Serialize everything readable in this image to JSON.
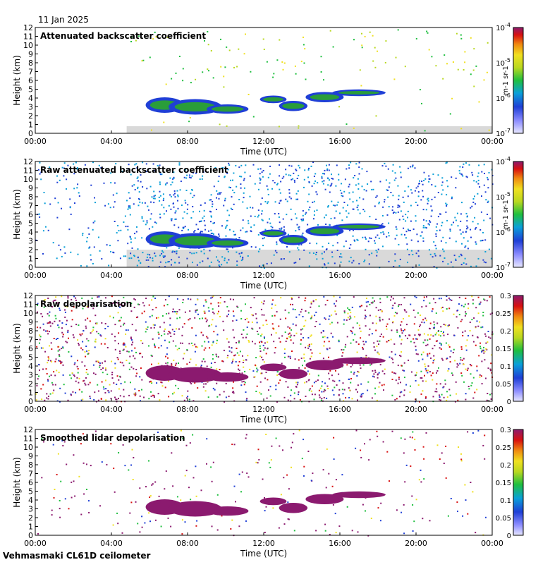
{
  "date": "11 Jan 2025",
  "footer": "Vehmasmaki CL61D ceilometer",
  "colors": {
    "background_fill": "#d9d9d9",
    "cloud_core": "#2a9d3a",
    "cloud_edge": "#1f3fd6",
    "depol_high": "#8b1a6f"
  },
  "chart_data": [
    {
      "type": "heatmap",
      "title": "Attenuated backscatter coefficient",
      "xlabel": "Time (UTC)",
      "ylabel": "Height (km)",
      "xticks": [
        "00:00",
        "04:00",
        "08:00",
        "12:00",
        "16:00",
        "20:00",
        "00:00"
      ],
      "xlim": [
        0,
        24
      ],
      "ylim": [
        0,
        12
      ],
      "yticks": [
        "0",
        "1",
        "2",
        "3",
        "4",
        "5",
        "6",
        "7",
        "8",
        "9",
        "10",
        "11",
        "12"
      ],
      "colorbar": {
        "scale": "log",
        "ticks": [
          "10^-4",
          "10^-5",
          "10^-6",
          "10^-7"
        ],
        "label": "m^-1 sr^-1"
      }
    },
    {
      "type": "heatmap",
      "title": "Raw attenuated backscatter coefficient",
      "xlabel": "Time (UTC)",
      "ylabel": "Height (km)",
      "xticks": [
        "00:00",
        "04:00",
        "08:00",
        "12:00",
        "16:00",
        "20:00",
        "00:00"
      ],
      "xlim": [
        0,
        24
      ],
      "ylim": [
        0,
        12
      ],
      "yticks": [
        "0",
        "1",
        "2",
        "3",
        "4",
        "5",
        "6",
        "7",
        "8",
        "9",
        "10",
        "11",
        "12"
      ],
      "colorbar": {
        "scale": "log",
        "ticks": [
          "10^-4",
          "10^-5",
          "10^-6",
          "10^-7"
        ],
        "label": "m^-1 sr^-1"
      }
    },
    {
      "type": "heatmap",
      "title": "Raw depolarisation",
      "xlabel": "Time (UTC)",
      "ylabel": "Height (km)",
      "xticks": [
        "00:00",
        "04:00",
        "08:00",
        "12:00",
        "16:00",
        "20:00",
        "00:00"
      ],
      "xlim": [
        0,
        24
      ],
      "ylim": [
        0,
        12
      ],
      "yticks": [
        "0",
        "1",
        "2",
        "3",
        "4",
        "5",
        "6",
        "7",
        "8",
        "9",
        "10",
        "11",
        "12"
      ],
      "colorbar": {
        "scale": "linear",
        "ticks": [
          "0.3",
          "0.25",
          "0.2",
          "0.15",
          "0.1",
          "0.05",
          "0"
        ]
      }
    },
    {
      "type": "heatmap",
      "title": "Smoothed lidar depolarisation",
      "xlabel": "Time (UTC)",
      "ylabel": "Height (km)",
      "xticks": [
        "00:00",
        "04:00",
        "08:00",
        "12:00",
        "16:00",
        "20:00",
        "00:00"
      ],
      "xlim": [
        0,
        24
      ],
      "ylim": [
        0,
        12
      ],
      "yticks": [
        "0",
        "1",
        "2",
        "3",
        "4",
        "5",
        "6",
        "7",
        "8",
        "9",
        "10",
        "11",
        "12"
      ],
      "colorbar": {
        "scale": "linear",
        "ticks": [
          "0.3",
          "0.25",
          "0.2",
          "0.15",
          "0.1",
          "0.05",
          "0"
        ]
      }
    }
  ]
}
